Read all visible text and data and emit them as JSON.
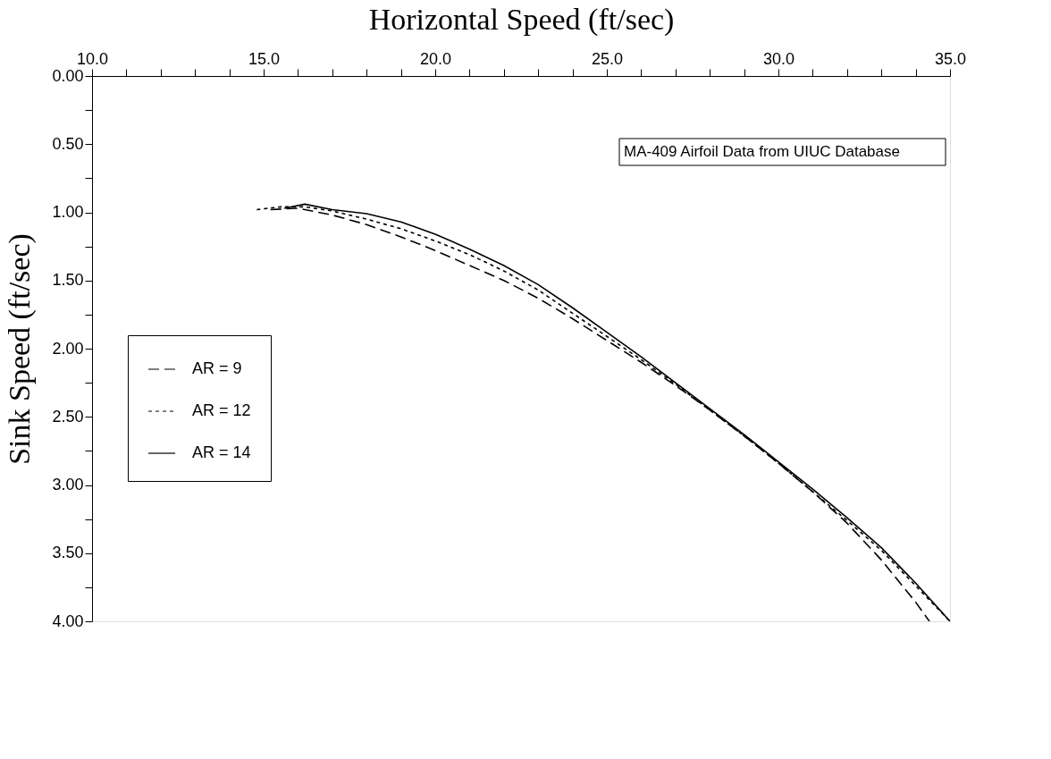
{
  "chart_data": {
    "type": "line",
    "xlabel": "Horizontal Speed (ft/sec)",
    "ylabel": "Sink Speed (ft/sec)",
    "annotations": [
      "MA-409 Airfoil Data from UIUC Database"
    ],
    "xlim": [
      10.0,
      35.0
    ],
    "xticks": [
      {
        "value": 10,
        "label": "10.0"
      },
      {
        "value": 11,
        "label": null
      },
      {
        "value": 12,
        "label": null
      },
      {
        "value": 13,
        "label": null
      },
      {
        "value": 14,
        "label": null
      },
      {
        "value": 15,
        "label": "15.0"
      },
      {
        "value": 16,
        "label": null
      },
      {
        "value": 17,
        "label": null
      },
      {
        "value": 18,
        "label": null
      },
      {
        "value": 19,
        "label": null
      },
      {
        "value": 20,
        "label": "20.0"
      },
      {
        "value": 21,
        "label": null
      },
      {
        "value": 22,
        "label": null
      },
      {
        "value": 23,
        "label": null
      },
      {
        "value": 24,
        "label": null
      },
      {
        "value": 25,
        "label": "25.0"
      },
      {
        "value": 26,
        "label": null
      },
      {
        "value": 27,
        "label": null
      },
      {
        "value": 28,
        "label": null
      },
      {
        "value": 29,
        "label": null
      },
      {
        "value": 30,
        "label": "30.0"
      },
      {
        "value": 31,
        "label": null
      },
      {
        "value": 32,
        "label": null
      },
      {
        "value": 33,
        "label": null
      },
      {
        "value": 34,
        "label": null
      },
      {
        "value": 35,
        "label": "35.0"
      }
    ],
    "ylim": [
      4.0,
      0.0
    ],
    "yticks": [
      {
        "value": 0,
        "label": "0.00"
      },
      {
        "value": 0.25,
        "label": null
      },
      {
        "value": 0.5,
        "label": "0.50"
      },
      {
        "value": 0.75,
        "label": null
      },
      {
        "value": 1,
        "label": "1.00"
      },
      {
        "value": 1.25,
        "label": null
      },
      {
        "value": 1.5,
        "label": "1.50"
      },
      {
        "value": 1.75,
        "label": null
      },
      {
        "value": 2,
        "label": "2.00"
      },
      {
        "value": 2.25,
        "label": null
      },
      {
        "value": 2.5,
        "label": "2.50"
      },
      {
        "value": 2.75,
        "label": null
      },
      {
        "value": 3,
        "label": "3.00"
      },
      {
        "value": 3.25,
        "label": null
      },
      {
        "value": 3.5,
        "label": "3.50"
      },
      {
        "value": 3.75,
        "label": null
      },
      {
        "value": 4,
        "label": "4.00"
      }
    ],
    "grid": false,
    "legend": "left",
    "marker": "none",
    "series": [
      {
        "name": "AR = 9",
        "color": "#000000",
        "line_style": "dashed",
        "x": [
          15.2,
          16,
          17,
          18,
          19,
          20,
          21,
          22,
          23,
          24,
          25,
          26,
          27,
          28,
          29,
          30,
          31,
          32,
          33,
          34,
          34.4
        ],
        "values": [
          0.98,
          0.97,
          1.02,
          1.09,
          1.18,
          1.28,
          1.39,
          1.5,
          1.63,
          1.78,
          1.94,
          2.1,
          2.27,
          2.45,
          2.64,
          2.84,
          3.05,
          3.28,
          3.55,
          3.86,
          4.0
        ]
      },
      {
        "name": "AR = 12",
        "color": "#000000",
        "line_style": "dotted",
        "x": [
          14.8,
          15.5,
          16.2,
          17,
          18,
          19,
          20,
          21,
          22,
          23,
          24,
          25,
          26,
          27,
          28,
          29,
          30,
          31,
          32,
          33,
          34,
          35
        ],
        "values": [
          0.98,
          0.96,
          0.96,
          0.99,
          1.05,
          1.12,
          1.21,
          1.31,
          1.43,
          1.57,
          1.74,
          1.91,
          2.08,
          2.26,
          2.45,
          2.64,
          2.84,
          3.05,
          3.26,
          3.48,
          3.74,
          4.0
        ]
      },
      {
        "name": "AR = 14",
        "color": "#000000",
        "line_style": "solid",
        "x": [
          15.6,
          16.2,
          17,
          18,
          19,
          20,
          21,
          22,
          23,
          24,
          25,
          26,
          27,
          28,
          29,
          30,
          31,
          32,
          33,
          34,
          35
        ],
        "values": [
          0.97,
          0.94,
          0.98,
          1.01,
          1.07,
          1.16,
          1.27,
          1.39,
          1.53,
          1.7,
          1.88,
          2.06,
          2.25,
          2.44,
          2.63,
          2.83,
          3.03,
          3.24,
          3.46,
          3.72,
          4.0
        ]
      }
    ]
  }
}
